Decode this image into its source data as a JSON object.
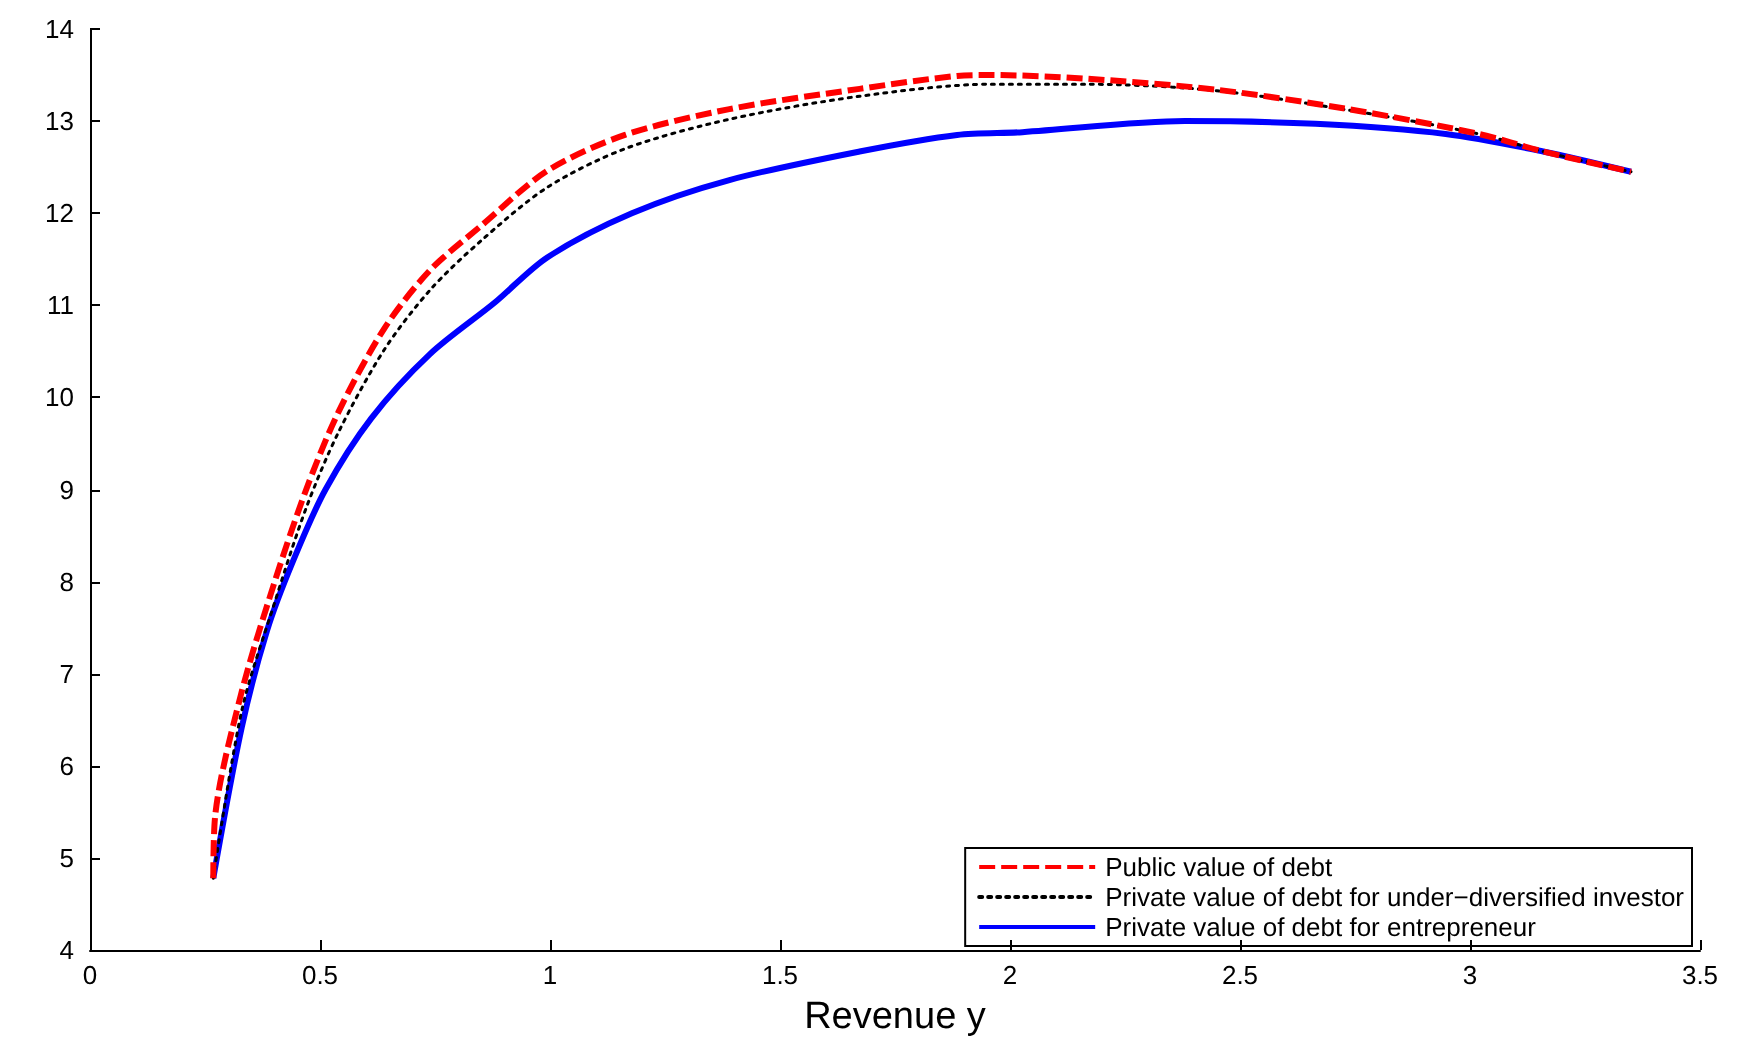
{
  "chart_data": {
    "type": "line",
    "xlabel": "Revenue y",
    "xlim": [
      0,
      3.5
    ],
    "xticks": [
      0,
      0.5,
      1,
      1.5,
      2,
      2.5,
      3,
      3.5
    ],
    "ylim": [
      4,
      14
    ],
    "yticks": [
      4,
      5,
      6,
      7,
      8,
      9,
      10,
      11,
      12,
      13,
      14
    ],
    "grid": false,
    "legend": "bottom right",
    "marker": "none",
    "series": [
      {
        "name": "Public value of debt",
        "color": "#ff0000",
        "line_style": "dashed",
        "x": [
          0.268,
          0.272,
          0.328,
          0.399,
          0.47,
          0.54,
          0.64,
          0.739,
          0.852,
          0.994,
          1.163,
          1.39,
          1.673,
          1.885,
          1.956,
          2.168,
          2.45,
          2.735,
          3.02,
          3.159,
          3.35
        ],
        "values": [
          4.78,
          5.45,
          6.77,
          7.96,
          9.0,
          9.84,
          10.75,
          11.38,
          11.87,
          12.46,
          12.85,
          13.13,
          13.35,
          13.49,
          13.5,
          13.46,
          13.34,
          13.13,
          12.86,
          12.67,
          12.45
        ]
      },
      {
        "name": "Private value of debt for under−diversified investor",
        "color": "#000000",
        "line_style": "dotted",
        "x": [
          0.268,
          0.33,
          0.4,
          0.47,
          0.54,
          0.64,
          0.74,
          0.85,
          0.994,
          1.163,
          1.39,
          1.673,
          1.956,
          2.168,
          2.45,
          2.735,
          3.02,
          3.159,
          3.35
        ],
        "values": [
          4.78,
          6.6,
          7.75,
          8.8,
          9.62,
          10.52,
          11.17,
          11.7,
          12.28,
          12.7,
          13.02,
          13.27,
          13.4,
          13.4,
          13.33,
          13.12,
          12.86,
          12.67,
          12.45
        ]
      },
      {
        "name": "Private value of debt for entrepreneur",
        "color": "#0000ff",
        "line_style": "solid",
        "x": [
          0.268,
          0.33,
          0.385,
          0.442,
          0.512,
          0.611,
          0.739,
          0.88,
          0.994,
          1.178,
          1.39,
          1.673,
          1.885,
          2.027,
          2.38,
          2.664,
          2.947,
          3.159,
          3.35
        ],
        "values": [
          4.78,
          6.42,
          7.47,
          8.23,
          9.0,
          9.77,
          10.47,
          11.03,
          11.52,
          12.0,
          12.36,
          12.67,
          12.85,
          12.88,
          13.0,
          12.97,
          12.86,
          12.67,
          12.45
        ]
      }
    ]
  }
}
